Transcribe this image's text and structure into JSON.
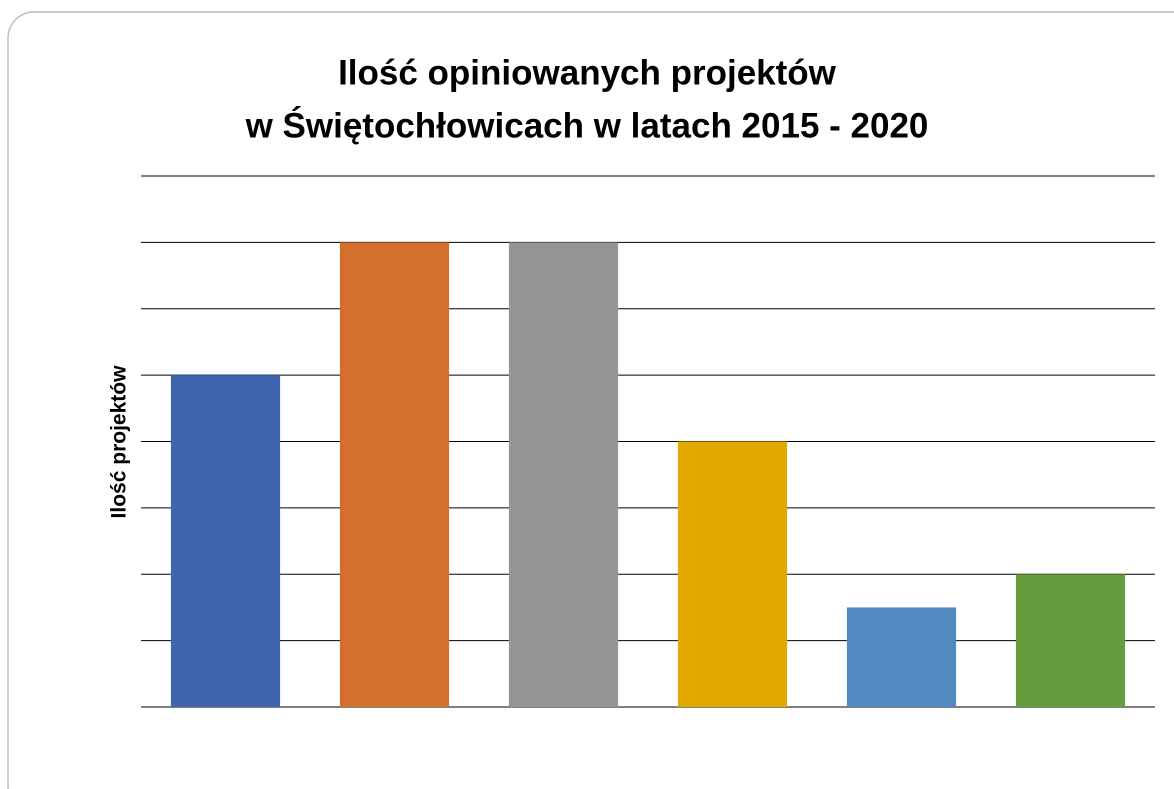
{
  "chart_data": {
    "type": "bar",
    "title": [
      "Ilość opiniowanych projektów",
      "w Świętochłowicach w latach 2015 - 2020"
    ],
    "y_label": "Ilość projektów",
    "categories": [
      null,
      null,
      null,
      null,
      null,
      null
    ],
    "values": [
      5,
      7,
      7,
      4,
      1.5,
      2
    ],
    "colors": [
      "#3d66ae",
      "#d4702c",
      "#959595",
      "#e2aa00",
      "#508ac0",
      "#659c3d"
    ],
    "ylim": [
      0,
      8
    ],
    "yticks": [
      0,
      1,
      2,
      3,
      4,
      5,
      6,
      7,
      8
    ],
    "grid": true
  }
}
